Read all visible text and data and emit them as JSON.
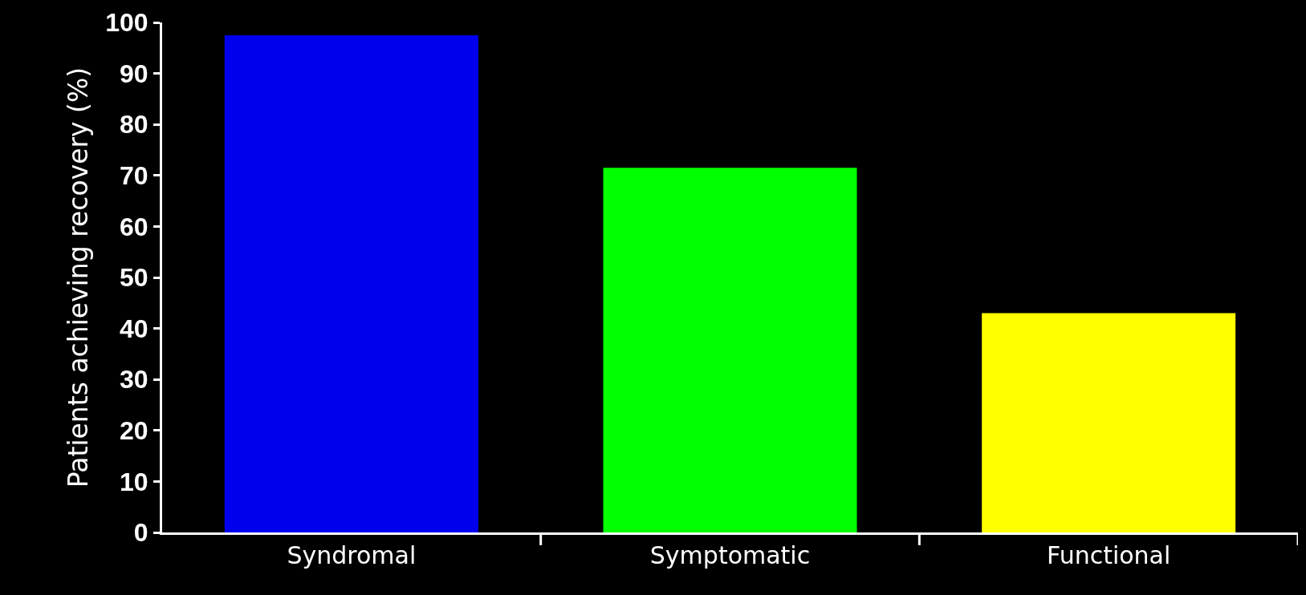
{
  "chart_data": {
    "type": "bar",
    "ylabel": "Patients achieving recovery (%)",
    "categories": [
      "Syndromal",
      "Symptomatic",
      "Functional"
    ],
    "values": [
      97.5,
      71.5,
      43
    ],
    "colors": [
      "#0000ee",
      "#00ff00",
      "#ffff00"
    ],
    "ylim": [
      0,
      100
    ],
    "yticks": [
      0,
      10,
      20,
      30,
      40,
      50,
      60,
      70,
      80,
      90,
      100
    ]
  }
}
